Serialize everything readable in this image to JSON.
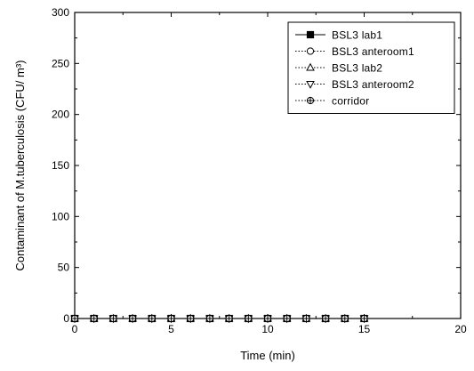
{
  "chart_data": {
    "type": "line",
    "xlabel": "Time (min)",
    "ylabel": "Contaminant of M.tuberculosis (CFU/ m³)",
    "xlim": [
      0,
      20
    ],
    "ylim": [
      0,
      300
    ],
    "xticks": [
      0,
      5,
      10,
      15,
      20
    ],
    "yticks": [
      0,
      50,
      100,
      150,
      200,
      250,
      300
    ],
    "grid": false,
    "legend_position": "top-right",
    "x": [
      0,
      1,
      2,
      3,
      4,
      5,
      6,
      7,
      8,
      9,
      10,
      11,
      12,
      13,
      14,
      15
    ],
    "series": [
      {
        "name": "BSL3  lab1",
        "marker": "filled-square",
        "line": "solid",
        "values": [
          0,
          0,
          0,
          0,
          0,
          0,
          0,
          0,
          0,
          0,
          0,
          0,
          0,
          0,
          0,
          0
        ]
      },
      {
        "name": "BSL3  anteroom1",
        "marker": "open-circle",
        "line": "dotted",
        "values": [
          0,
          0,
          0,
          0,
          0,
          0,
          0,
          0,
          0,
          0,
          0,
          0,
          0,
          0,
          0,
          0
        ]
      },
      {
        "name": "BSL3  lab2",
        "marker": "open-triangle-up",
        "line": "dotted",
        "values": [
          0,
          0,
          0,
          0,
          0,
          0,
          0,
          0,
          0,
          0,
          0,
          0,
          0,
          0,
          0,
          0
        ]
      },
      {
        "name": "BSL3  anteroom2",
        "marker": "open-triangle-down",
        "line": "dotted",
        "values": [
          0,
          0,
          0,
          0,
          0,
          0,
          0,
          0,
          0,
          0,
          0,
          0,
          0,
          0,
          0,
          0
        ]
      },
      {
        "name": "corridor",
        "marker": "circle-plus",
        "line": "dotted",
        "values": [
          0,
          0,
          0,
          0,
          0,
          0,
          0,
          0,
          0,
          0,
          0,
          0,
          0,
          0,
          0,
          0
        ]
      }
    ]
  }
}
